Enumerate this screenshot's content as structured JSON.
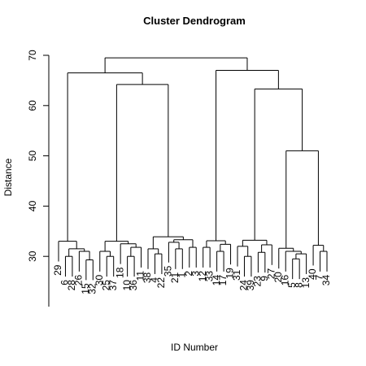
{
  "chart_data": {
    "type": "dendrogram",
    "title": "Cluster Dendrogram",
    "x_label": "ID Number",
    "y_label": "Distance",
    "ylim": [
      20,
      70
    ],
    "yticks": [
      30,
      40,
      50,
      60,
      70
    ],
    "hang": 0.1,
    "color": "#000000",
    "tree": {
      "height": 69.5,
      "children": [
        {
          "height": 66.5,
          "children": [
            {
              "height": 33,
              "children": [
                {
                  "label": "29"
                },
                {
                  "height": 31.5,
                  "children": [
                    {
                      "height": 30,
                      "children": [
                        {
                          "label": "6"
                        },
                        {
                          "label": "28"
                        }
                      ]
                    },
                    {
                      "height": 31,
                      "children": [
                        {
                          "label": "26"
                        },
                        {
                          "height": 29.3,
                          "children": [
                            {
                              "label": "15"
                            },
                            {
                              "label": "32"
                            }
                          ]
                        }
                      ]
                    }
                  ]
                }
              ]
            },
            {
              "height": 64.2,
              "children": [
                {
                  "height": 33,
                  "children": [
                    {
                      "height": 31,
                      "children": [
                        {
                          "label": "30"
                        },
                        {
                          "height": 30,
                          "children": [
                            {
                              "label": "25"
                            },
                            {
                              "label": "37"
                            }
                          ]
                        }
                      ]
                    },
                    {
                      "height": 32.5,
                      "children": [
                        {
                          "label": "18"
                        },
                        {
                          "height": 31.8,
                          "children": [
                            {
                              "height": 30,
                              "children": [
                                {
                                  "label": "10"
                                },
                                {
                                  "label": "36"
                                }
                              ]
                            },
                            {
                              "label": "11"
                            }
                          ]
                        }
                      ]
                    }
                  ]
                },
                {
                  "height": 33.9,
                  "children": [
                    {
                      "height": 31.5,
                      "children": [
                        {
                          "label": "38"
                        },
                        {
                          "height": 30.5,
                          "children": [
                            {
                              "label": "4"
                            },
                            {
                              "label": "22"
                            }
                          ]
                        }
                      ]
                    },
                    {
                      "height": 33.3,
                      "children": [
                        {
                          "height": 32.8,
                          "children": [
                            {
                              "label": "35"
                            },
                            {
                              "height": 31.5,
                              "children": [
                                {
                                  "label": "21"
                                },
                                {
                                  "label": "1"
                                }
                              ]
                            }
                          ]
                        },
                        {
                          "height": 31.8,
                          "children": [
                            {
                              "label": "2"
                            },
                            {
                              "label": "3"
                            }
                          ]
                        }
                      ]
                    }
                  ]
                }
              ]
            }
          ]
        },
        {
          "height": 67,
          "children": [
            {
              "height": 33.1,
              "children": [
                {
                  "height": 31.8,
                  "children": [
                    {
                      "label": "12"
                    },
                    {
                      "label": "33"
                    }
                  ]
                },
                {
                  "height": 32.4,
                  "children": [
                    {
                      "height": 31,
                      "children": [
                        {
                          "label": "14"
                        },
                        {
                          "label": "17"
                        }
                      ]
                    },
                    {
                      "label": "19"
                    }
                  ]
                }
              ]
            },
            {
              "height": 63.3,
              "children": [
                {
                  "height": 33.2,
                  "children": [
                    {
                      "height": 32,
                      "children": [
                        {
                          "label": "31"
                        },
                        {
                          "height": 30,
                          "children": [
                            {
                              "label": "24"
                            },
                            {
                              "label": "39"
                            }
                          ]
                        }
                      ]
                    },
                    {
                      "height": 32.3,
                      "children": [
                        {
                          "height": 30.8,
                          "children": [
                            {
                              "label": "23"
                            },
                            {
                              "label": "9"
                            }
                          ]
                        },
                        {
                          "label": "27"
                        }
                      ]
                    }
                  ]
                },
                {
                  "height": 51,
                  "children": [
                    {
                      "height": 31.6,
                      "children": [
                        {
                          "label": "20"
                        },
                        {
                          "height": 31,
                          "children": [
                            {
                              "label": "16"
                            },
                            {
                              "height": 30.5,
                              "children": [
                                {
                                  "height": 29.5,
                                  "children": [
                                    {
                                      "label": "5"
                                    },
                                    {
                                      "label": "8"
                                    }
                                  ]
                                },
                                {
                                  "label": "13"
                                }
                              ]
                            }
                          ]
                        }
                      ]
                    },
                    {
                      "height": 32.2,
                      "children": [
                        {
                          "label": "40"
                        },
                        {
                          "height": 31,
                          "children": [
                            {
                              "label": "7"
                            },
                            {
                              "label": "34"
                            }
                          ]
                        }
                      ]
                    }
                  ]
                }
              ]
            }
          ]
        }
      ]
    }
  }
}
